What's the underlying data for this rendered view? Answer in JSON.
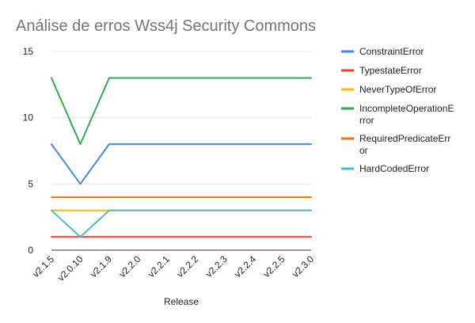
{
  "chart_data": {
    "type": "line",
    "title": "Análise de erros Wss4j Security Commons",
    "xlabel": "Release",
    "ylabel": "",
    "ylim": [
      0,
      15
    ],
    "yticks": [
      0,
      5,
      10,
      15
    ],
    "grid": true,
    "legend_position": "right",
    "categories": [
      "v2.1.5",
      "v2.0.10",
      "v2.1.9",
      "v2.2.0",
      "v2.2.1",
      "v2.2.2",
      "v2.2.3",
      "v2.2.4",
      "v2.2.5",
      "v2.3.0"
    ],
    "series": [
      {
        "name": "ConstraintError",
        "legend_lines": [
          "ConstraintError"
        ],
        "color": "#4a86e8",
        "values": [
          8,
          5,
          8,
          8,
          8,
          8,
          8,
          8,
          8,
          8
        ]
      },
      {
        "name": "TypestateError",
        "legend_lines": [
          "TypestateError"
        ],
        "color": "#ea4335",
        "values": [
          1,
          1,
          1,
          1,
          1,
          1,
          1,
          1,
          1,
          1
        ]
      },
      {
        "name": "NeverTypeOfError",
        "legend_lines": [
          "NeverTypeOfError"
        ],
        "color": "#fbbc04",
        "values": [
          3,
          3,
          3,
          3,
          3,
          3,
          3,
          3,
          3,
          3
        ]
      },
      {
        "name": "IncompleteOperationError",
        "legend_lines": [
          "IncompleteOperationE",
          "rror"
        ],
        "color": "#34a853",
        "values": [
          13,
          8,
          13,
          13,
          13,
          13,
          13,
          13,
          13,
          13
        ]
      },
      {
        "name": "RequiredPredicateError",
        "legend_lines": [
          "RequiredPredicateErr",
          "or"
        ],
        "color": "#ff6d01",
        "values": [
          4,
          4,
          4,
          4,
          4,
          4,
          4,
          4,
          4,
          4
        ]
      },
      {
        "name": "HardCodedError",
        "legend_lines": [
          "HardCodedError"
        ],
        "color": "#46bdc6",
        "values": [
          3,
          1,
          3,
          3,
          3,
          3,
          3,
          3,
          3,
          3
        ]
      }
    ]
  }
}
